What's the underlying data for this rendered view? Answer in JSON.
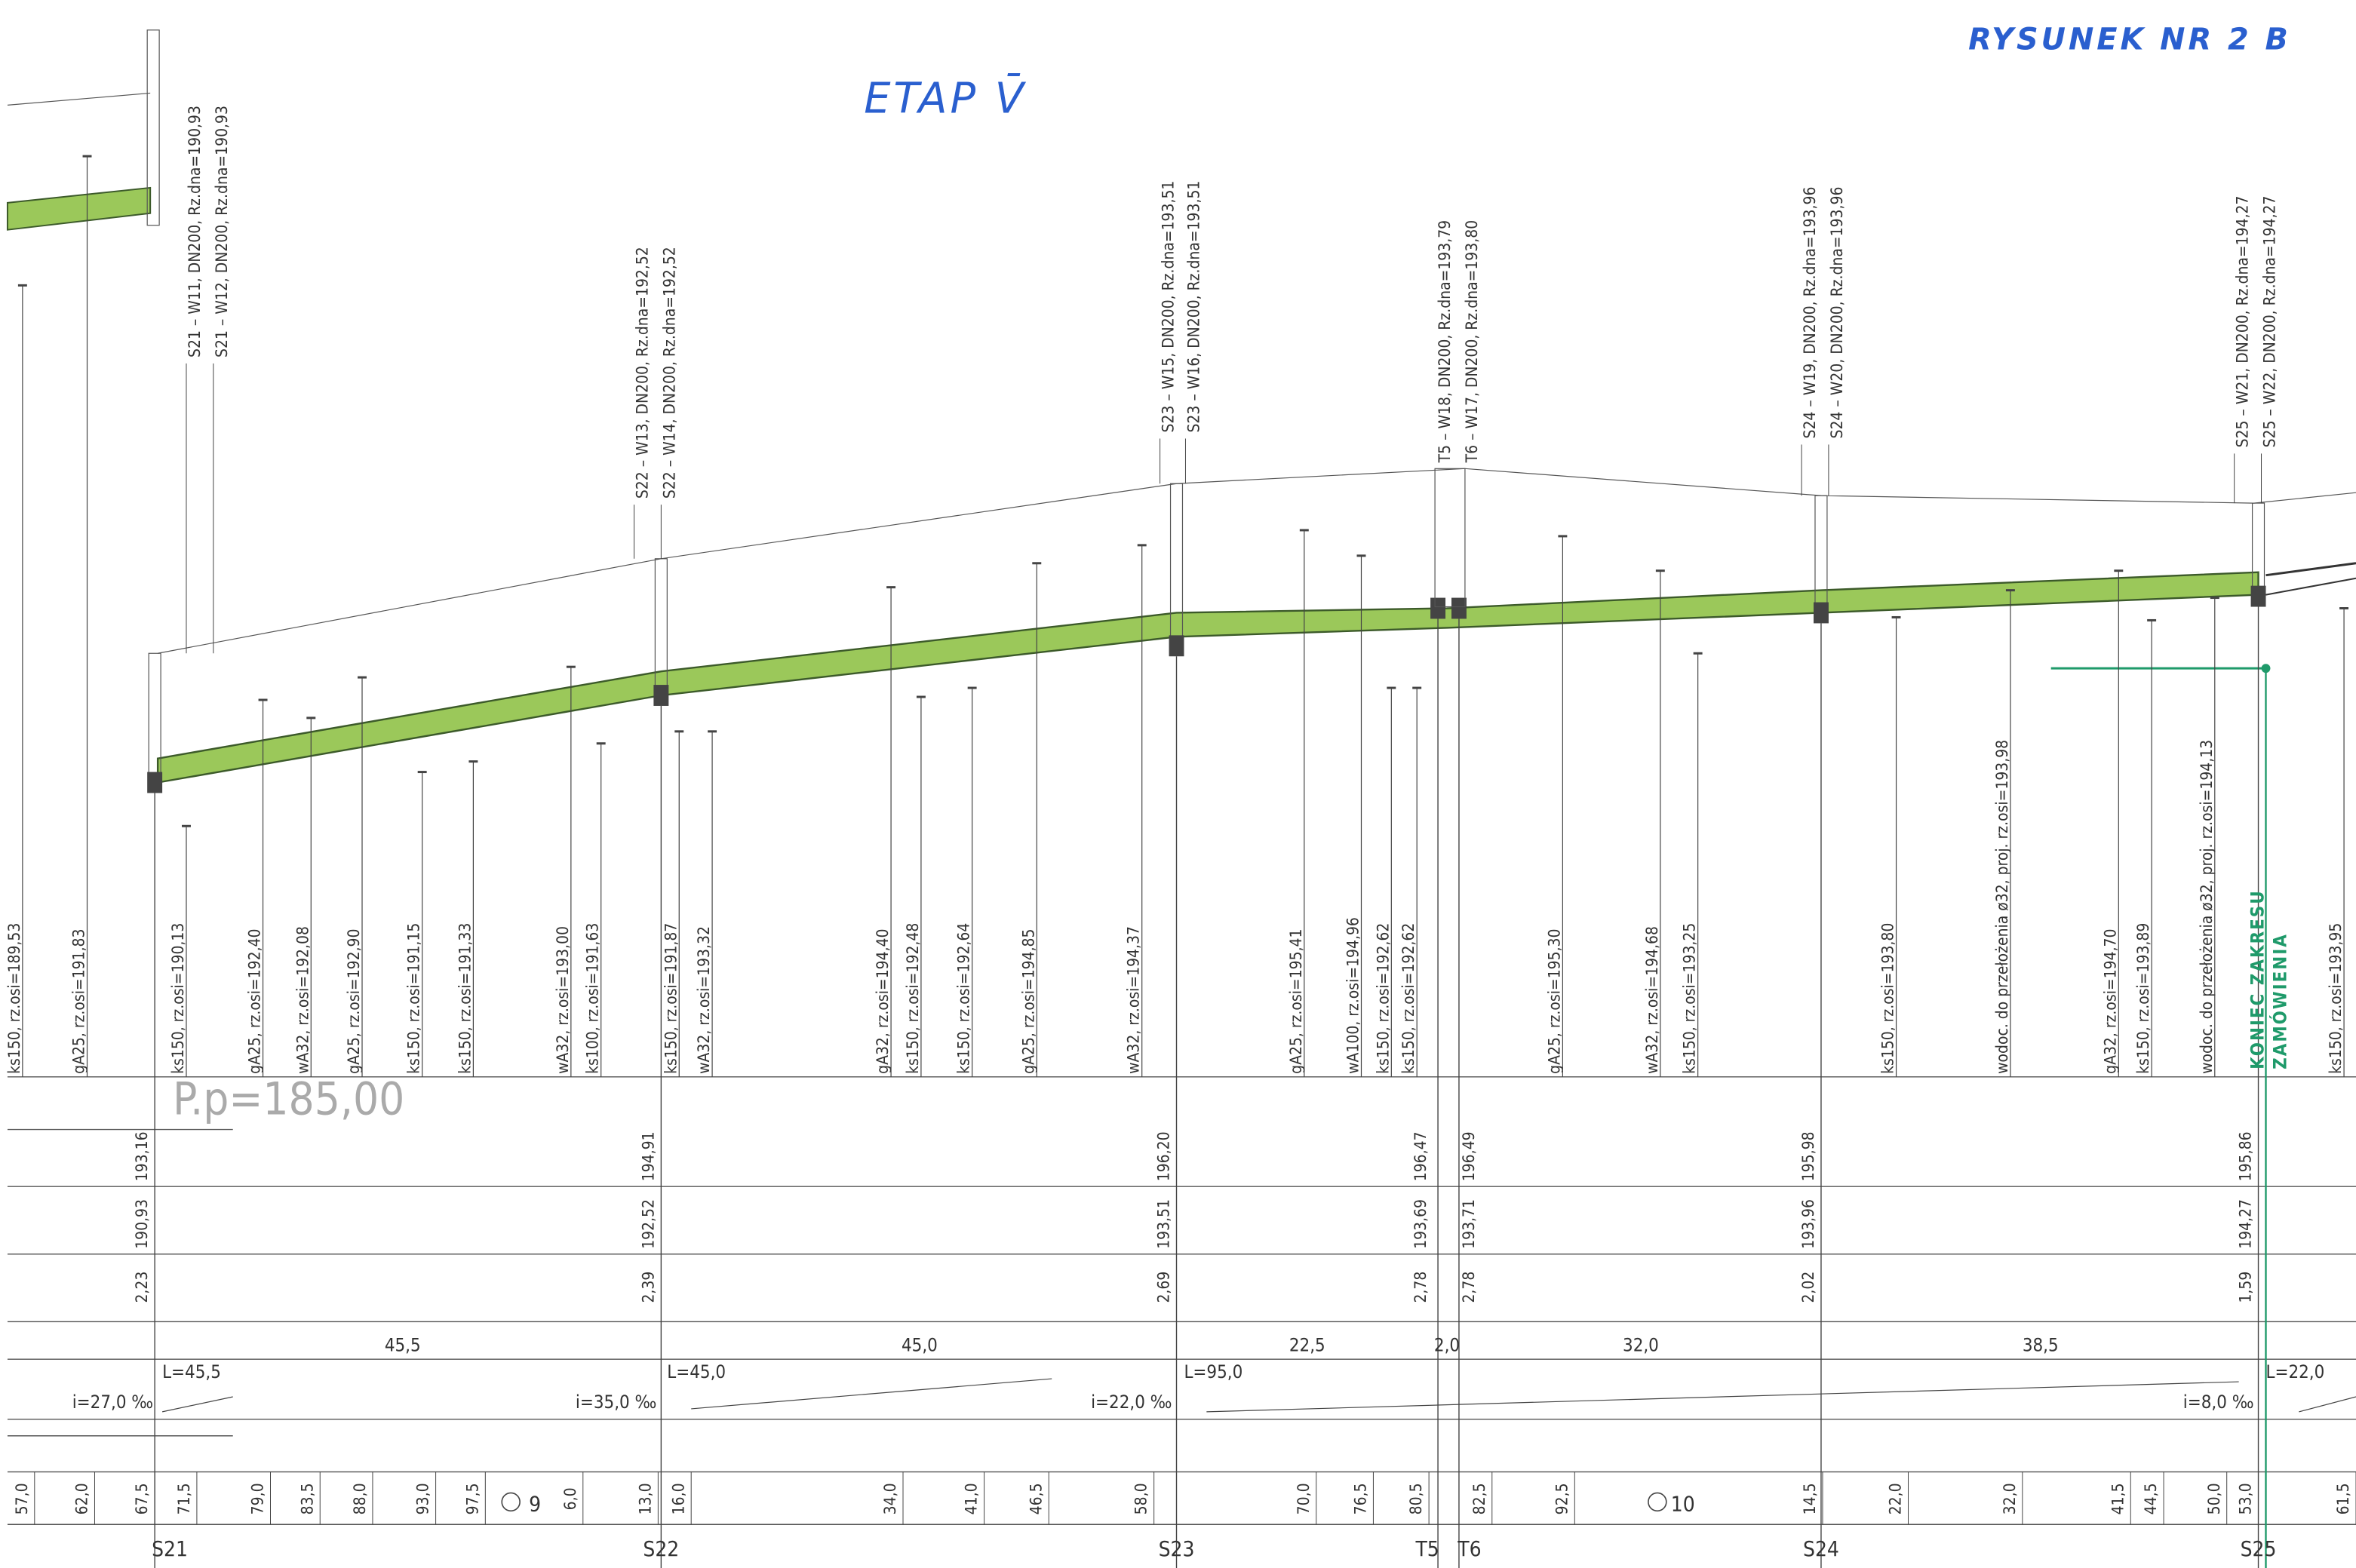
{
  "header": {
    "title": "ETAP V̄",
    "drawing_number": "RYSUNEK NR 2 B"
  },
  "reference_level": "P.p=185,00",
  "manholes": [
    {
      "name": "S21",
      "pipes": [
        "S21 – W11, DN200, Rz.dna=190,93",
        "S21 – W12, DN200, Rz.dna=190,93"
      ],
      "terrain": "193,16",
      "bottom": "190,93",
      "depth": "2,23"
    },
    {
      "name": "S22",
      "pipes": [
        "S22 – W13, DN200, Rz.dna=192,52",
        "S22 – W14, DN200, Rz.dna=192,52"
      ],
      "terrain": "194,91",
      "bottom": "192,52",
      "depth": "2,39"
    },
    {
      "name": "S23",
      "pipes": [
        "S23 – W15, DN200, Rz.dna=193,51",
        "S23 – W16, DN200, Rz.dna=193,51"
      ],
      "terrain": "196,20",
      "bottom": "193,51",
      "depth": "2,69"
    },
    {
      "name": "T5",
      "pipes": [
        "T5 – W18, DN200, Rz.dna=193,79"
      ],
      "terrain": "196,47",
      "bottom": "193,69",
      "depth": "2,78"
    },
    {
      "name": "T6",
      "pipes": [
        "T6 – W17, DN200, Rz.dna=193,80"
      ],
      "terrain": "196,49",
      "bottom": "193,71",
      "depth": "2,78"
    },
    {
      "name": "S24",
      "pipes": [
        "S24 – W19, DN200, Rz.dna=193,96",
        "S24 – W20, DN200, Rz.dna=193,96"
      ],
      "terrain": "195,98",
      "bottom": "193,96",
      "depth": "2,02"
    },
    {
      "name": "S25",
      "pipes": [
        "S25 – W21, DN200, Rz.dna=194,27",
        "S25 – W22, DN200, Rz.dna=194,27"
      ],
      "terrain": "195,86",
      "bottom": "194,27",
      "depth": "1,59"
    }
  ],
  "crossings": [
    "ks150, rz.osi=189,53",
    "gA25, rz.osi=191,83",
    "ks150, rz.osi=190,13",
    "gA25, rz.osi=192,40",
    "wA32, rz.osi=192,08",
    "gA25, rz.osi=192,90",
    "ks150, rz.osi=191,15",
    "ks150, rz.osi=191,33",
    "wA32, rz.osi=193,00",
    "ks100, rz.osi=191,63",
    "ks150, rz.osi=191,87",
    "wA32, rz.osi=193,32",
    "gA32, rz.osi=194,40",
    "ks150, rz.osi=192,48",
    "ks150, rz.osi=192,64",
    "gA25, rz.osi=194,85",
    "wA32, rz.osi=194,37",
    "gA25, rz.osi=195,41",
    "wA100, rz.osi=194,96",
    "ks150, rz.osi=192,62",
    "ks150, rz.osi=192,62",
    "gA25, rz.osi=195,30",
    "wA32, rz.osi=194,68",
    "ks150, rz.osi=193,25",
    "ks150, rz.osi=193,80",
    "wodoc. do przełożenia ø32, proj. rz.osi=193,98",
    "gA32, rz.osi=194,70",
    "ks150, rz.osi=193,89",
    "wodoc. do przełożenia ø32, proj. rz.osi=194,13",
    "ks150, rz.osi=193,95"
  ],
  "segments": {
    "distances": [
      "45,5",
      "45,0",
      "22,5",
      "2,0",
      "32,0",
      "38,5"
    ],
    "lengths": [
      "L=45,5",
      "L=45,0",
      "L=95,0",
      "L=22,0"
    ],
    "slopes": [
      "i=27,0 ‰",
      "i=35,0 ‰",
      "i=22,0 ‰",
      "i=8,0 ‰"
    ]
  },
  "chainage": [
    "57,0",
    "62,0",
    "67,5",
    "71,5",
    "79,0",
    "83,5",
    "88,0",
    "93,0",
    "97,5",
    "6,0",
    "13,0",
    "16,0",
    "34,0",
    "41,0",
    "46,5",
    "58,0",
    "70,0",
    "76,5",
    "80,5",
    "82,5",
    "92,5",
    "14,5",
    "22,0",
    "32,0",
    "41,5",
    "44,5",
    "50,0",
    "53,0",
    "61,5"
  ],
  "hectometers": [
    "9",
    "10"
  ],
  "annotation": [
    "KONIEC ZAKRESU",
    "ZAMÓWIENIA"
  ]
}
